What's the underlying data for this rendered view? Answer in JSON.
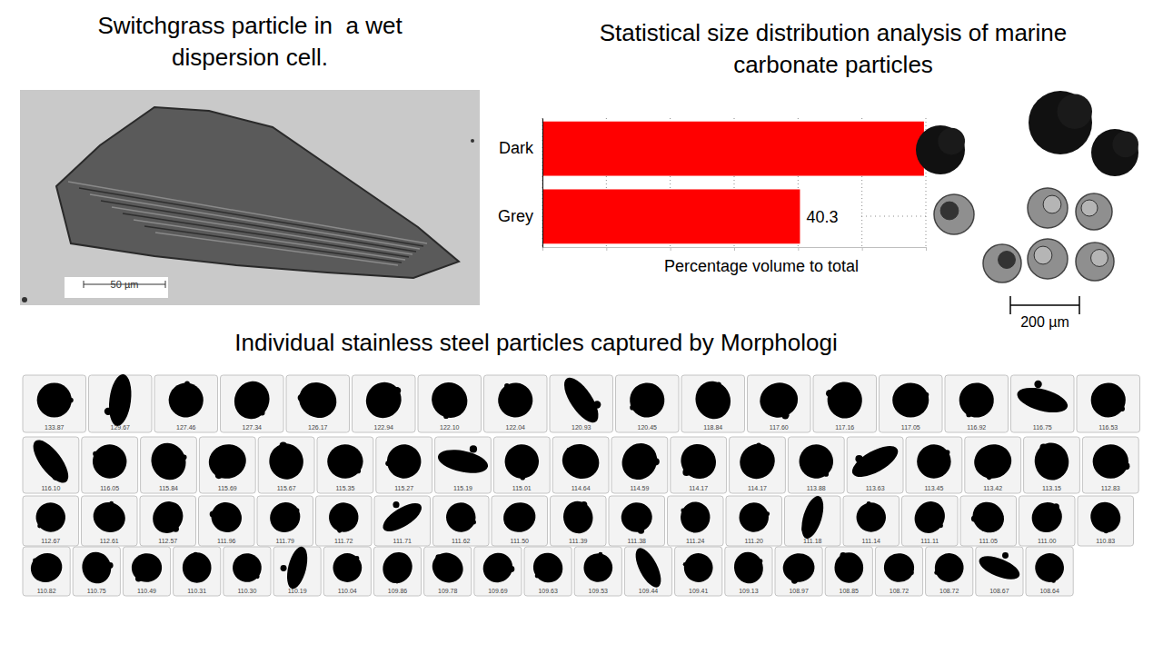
{
  "micrograph_panel": {
    "title": "Switchgrass particle in  a wet dispersion cell.",
    "scale_bar": "50 µm"
  },
  "chart_data": {
    "type": "bar",
    "title": "Statistical size distribution analysis of marine carbonate particles",
    "categories": [
      "Dark",
      "Grey"
    ],
    "values": [
      59.7,
      40.3
    ],
    "color": "#ff0000",
    "orientation": "horizontal",
    "data_labels": true,
    "x_label": "Percentage volume to total",
    "xlim": [
      0,
      60
    ],
    "xticks": [
      0,
      10,
      20,
      30,
      40,
      50,
      60
    ],
    "grid": true,
    "tick_labels": "y"
  },
  "carbonate_panel": {
    "scale_bar": "200 µm"
  },
  "steel_panel": {
    "title": "Individual stainless steel particles captured by Morphologi",
    "rows": [
      [
        "133.87",
        "129.67",
        "127.46",
        "127.34",
        "126.17",
        "122.94",
        "122.10",
        "122.04",
        "120.93",
        "120.45",
        "118.84",
        "117.60",
        "117.16",
        "117.05",
        "116.92",
        "116.75",
        "116.53"
      ],
      [
        "116.10",
        "116.05",
        "115.84",
        "115.69",
        "115.67",
        "115.35",
        "115.27",
        "115.19",
        "115.01",
        "114.64",
        "114.59",
        "114.17",
        "114.17",
        "113.88",
        "113.63",
        "113.45",
        "113.42",
        "113.15",
        "112.83"
      ],
      [
        "112.67",
        "112.61",
        "112.57",
        "111.96",
        "111.79",
        "111.72",
        "111.71",
        "111.62",
        "111.50",
        "111.39",
        "111.38",
        "111.24",
        "111.20",
        "111.18",
        "111.14",
        "111.11",
        "111.05",
        "111.00",
        "110.83"
      ],
      [
        "110.82",
        "110.75",
        "110.49",
        "110.31",
        "110.30",
        "110.19",
        "110.04",
        "109.86",
        "109.78",
        "109.69",
        "109.63",
        "109.53",
        "109.44",
        "109.41",
        "109.13",
        "108.97",
        "108.85",
        "108.72",
        "108.72",
        "108.67",
        "108.64"
      ]
    ]
  }
}
